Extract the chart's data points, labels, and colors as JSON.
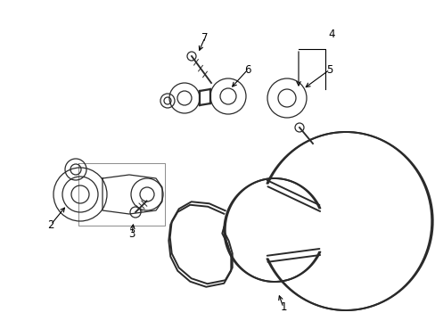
{
  "background_color": "#ffffff",
  "line_color": "#2a2a2a",
  "label_color": "#000000",
  "figsize": [
    4.89,
    3.6
  ],
  "dpi": 100,
  "belt_lw": 1.4,
  "part_lw": 0.9,
  "label_fs": 8.5
}
